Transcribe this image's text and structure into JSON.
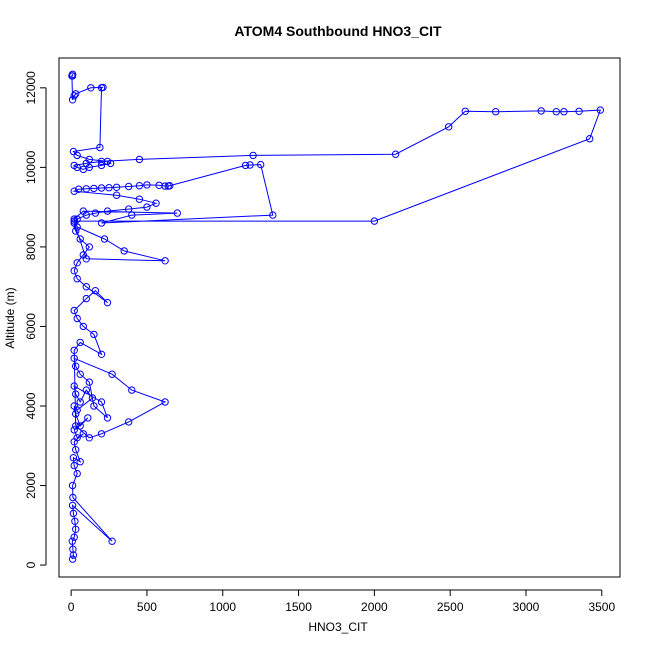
{
  "chart_data": {
    "type": "line",
    "title": "ATOM4 Southbound HNO3_CIT",
    "xlabel": "HNO3_CIT",
    "ylabel": "Altitude (m)",
    "xlim": [
      -80,
      3620
    ],
    "ylim": [
      -300,
      12750
    ],
    "x_ticks": [
      0,
      500,
      1000,
      1500,
      2000,
      2500,
      3000,
      3500
    ],
    "y_ticks": [
      0,
      2000,
      4000,
      6000,
      8000,
      10000,
      12000
    ],
    "grid": false,
    "marker": "open-circle",
    "color": "#0000ff",
    "series": [
      {
        "name": "",
        "x": [
          10,
          15,
          12,
          8,
          20,
          30,
          25,
          15,
          10,
          270,
          12,
          10,
          40,
          20,
          15,
          60,
          30,
          20,
          80,
          40,
          20,
          110,
          60,
          30,
          20,
          40,
          140,
          100,
          60,
          30,
          20,
          200,
          240,
          150,
          120,
          60,
          30,
          20,
          270,
          400,
          620,
          380,
          200,
          120,
          30,
          20,
          60,
          200,
          150,
          80,
          40,
          20,
          100,
          160,
          240,
          100,
          40,
          20,
          40,
          80,
          120,
          60,
          30,
          20,
          100,
          620,
          350,
          220,
          40,
          20,
          80,
          700,
          400,
          200,
          1330,
          1250,
          1180,
          1150,
          640,
          650,
          620,
          580,
          500,
          450,
          380,
          300,
          250,
          200,
          150,
          100,
          50,
          20,
          300,
          450,
          560,
          500,
          380,
          240,
          160,
          100,
          40,
          20,
          2000,
          3420,
          3490,
          3350,
          3250,
          3200,
          3100,
          2800,
          2600,
          2490,
          2140,
          1200,
          450,
          200,
          100,
          20,
          40,
          80,
          120,
          200,
          260,
          240,
          120,
          40,
          15,
          190,
          200,
          210,
          130,
          30,
          20,
          10,
          5,
          10,
          10
        ],
        "y": [
          150,
          250,
          400,
          600,
          700,
          900,
          1100,
          1300,
          1500,
          600,
          1700,
          2000,
          2300,
          2500,
          2700,
          2600,
          2900,
          3100,
          3300,
          3200,
          3400,
          3700,
          3500,
          3800,
          4000,
          3900,
          4200,
          4400,
          4100,
          4300,
          4500,
          4100,
          3700,
          4000,
          4600,
          4800,
          5000,
          5200,
          4800,
          4400,
          4100,
          3600,
          3300,
          3200,
          3500,
          5400,
          5600,
          5300,
          5800,
          6000,
          6200,
          6400,
          6700,
          6900,
          6600,
          7000,
          7200,
          7400,
          7600,
          7800,
          8000,
          8200,
          8400,
          8600,
          7700,
          7650,
          7900,
          8200,
          8500,
          8700,
          8900,
          8850,
          8800,
          8600,
          8800,
          10070,
          10060,
          10050,
          9530,
          9540,
          9530,
          9550,
          9560,
          9540,
          9520,
          9500,
          9490,
          9480,
          9470,
          9460,
          9450,
          9400,
          9300,
          9200,
          9100,
          9000,
          8950,
          8900,
          8850,
          8800,
          8700,
          8650,
          8650,
          10720,
          11440,
          11410,
          11400,
          11400,
          11420,
          11400,
          11410,
          11020,
          10330,
          10300,
          10200,
          10150,
          10100,
          10050,
          10000,
          9950,
          10000,
          10050,
          10100,
          10150,
          10200,
          10300,
          10400,
          10500,
          12000,
          12010,
          12000,
          11850,
          11800,
          11700,
          12300,
          12340,
          12300
        ]
      }
    ]
  }
}
